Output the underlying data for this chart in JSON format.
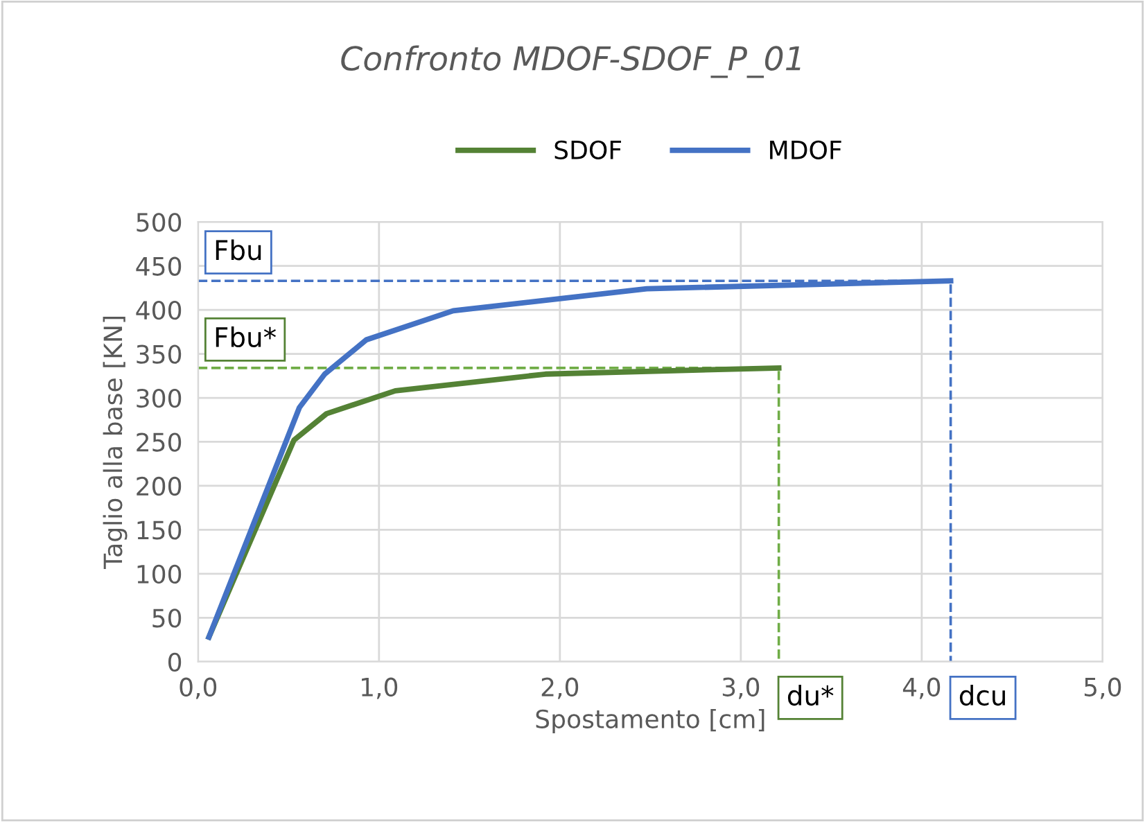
{
  "chart_data": {
    "type": "line",
    "title": "Confronto MDOF-SDOF_P_01",
    "xlabel": "Spostamento [cm]",
    "ylabel": "Taglio alla base [KN]",
    "series": [
      {
        "name": "SDOF",
        "color": "#548235",
        "x": [
          0.06,
          0.53,
          0.71,
          1.09,
          1.92,
          3.21
        ],
        "values": [
          28,
          252,
          282,
          308,
          327,
          334
        ]
      },
      {
        "name": "MDOF",
        "color": "#4472c4",
        "x": [
          0.06,
          0.56,
          0.7,
          0.93,
          1.41,
          2.48,
          4.16
        ],
        "values": [
          28,
          289,
          327,
          366,
          399,
          424,
          433
        ]
      },
      {
        "color": "#70ad47",
        "line_style": "dashed",
        "x": [
          0,
          3.21,
          3.21
        ],
        "values": [
          334,
          334,
          0
        ]
      },
      {
        "color": "#4472c4",
        "line_style": "dashed",
        "x": [
          0,
          4.16,
          4.16
        ],
        "values": [
          433,
          433,
          0
        ]
      }
    ],
    "annotations": [
      {
        "text": "Fbu",
        "x": 0,
        "y": 433
      },
      {
        "text": "Fbu*",
        "x": 0,
        "y": 334
      },
      {
        "text": "du*",
        "x": 3.21,
        "y": 0
      },
      {
        "text": "dcu",
        "x": 4.16,
        "y": 0
      }
    ],
    "xlim": [
      0,
      5
    ],
    "xticks": [
      {
        "value": 0,
        "label": "0,0"
      },
      {
        "value": 1,
        "label": "1,0"
      },
      {
        "value": 2,
        "label": "2,0"
      },
      {
        "value": 3,
        "label": "3,0"
      },
      {
        "value": 4,
        "label": "4,0"
      },
      {
        "value": 5,
        "label": "5,0"
      }
    ],
    "ylim": [
      0,
      500
    ],
    "yticks": [
      0,
      50,
      100,
      150,
      200,
      250,
      300,
      350,
      400,
      450,
      500
    ],
    "grid": true,
    "legend": "top",
    "marker": "none",
    "line_style": "solid"
  }
}
